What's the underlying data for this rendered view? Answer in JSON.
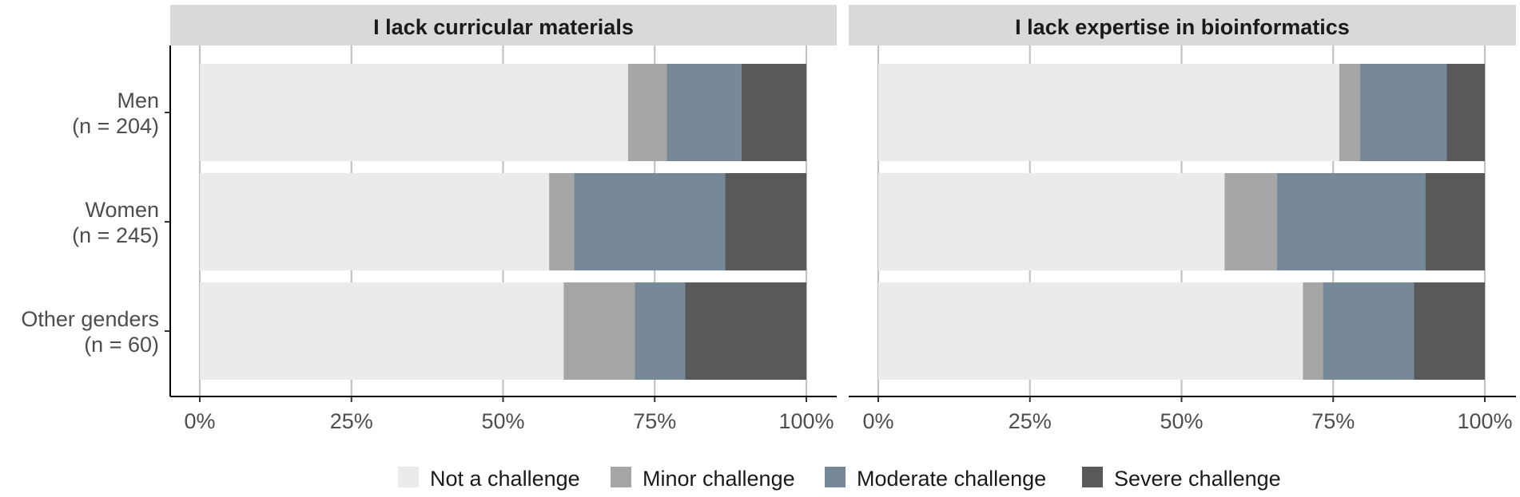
{
  "chart_data": {
    "type": "bar",
    "orientation": "horizontal",
    "stacked": true,
    "categories": [
      "Men\n(n = 204)",
      "Women\n(n = 245)",
      "Other genders\n(n = 60)"
    ],
    "x_ticks": [
      "0%",
      "25%",
      "50%",
      "75%",
      "100%"
    ],
    "xlim": [
      0,
      100
    ],
    "grid": true,
    "legend_position": "bottom",
    "legend": [
      "Not a challenge",
      "Minor challenge",
      "Moderate challenge",
      "Severe challenge"
    ],
    "colors": [
      "#ebebeb",
      "#a6a6a6",
      "#778899",
      "#595959"
    ],
    "panels": [
      {
        "title": "I lack curricular materials",
        "series": [
          {
            "name": "Not a challenge",
            "values": [
              70.6,
              57.6,
              60.0
            ]
          },
          {
            "name": "Minor challenge",
            "values": [
              6.4,
              4.1,
              11.7
            ]
          },
          {
            "name": "Moderate challenge",
            "values": [
              12.3,
              24.9,
              8.3
            ]
          },
          {
            "name": "Severe challenge",
            "values": [
              10.7,
              13.4,
              20.0
            ]
          }
        ]
      },
      {
        "title": "I lack expertise in bioinformatics",
        "series": [
          {
            "name": "Not a challenge",
            "values": [
              76.0,
              57.1,
              70.0
            ]
          },
          {
            "name": "Minor challenge",
            "values": [
              3.4,
              8.6,
              3.3
            ]
          },
          {
            "name": "Moderate challenge",
            "values": [
              14.3,
              24.5,
              15.0
            ]
          },
          {
            "name": "Severe challenge",
            "values": [
              6.3,
              9.8,
              11.7
            ]
          }
        ]
      }
    ]
  }
}
